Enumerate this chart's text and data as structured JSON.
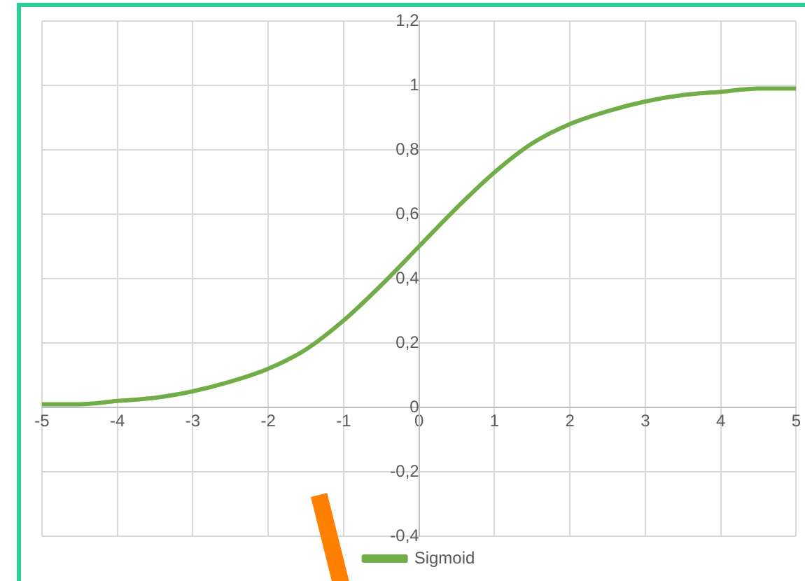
{
  "chart_data": {
    "type": "line",
    "x": [
      -5,
      -4.5,
      -4,
      -3.5,
      -3,
      -2.5,
      -2,
      -1.5,
      -1,
      -0.5,
      0,
      0.5,
      1,
      1.5,
      2,
      2.5,
      3,
      3.5,
      4,
      4.5,
      5
    ],
    "series": [
      {
        "name": "Sigmoid",
        "color": "#70ad47",
        "values": [
          0.01,
          0.01,
          0.02,
          0.03,
          0.05,
          0.08,
          0.12,
          0.18,
          0.27,
          0.38,
          0.5,
          0.62,
          0.73,
          0.82,
          0.88,
          0.92,
          0.95,
          0.97,
          0.98,
          0.99,
          0.99
        ]
      }
    ],
    "xlim": [
      -5,
      5
    ],
    "xticks": [
      -5,
      -4,
      -3,
      -2,
      -1,
      0,
      1,
      2,
      3,
      4,
      5
    ],
    "ylim": [
      -0.4,
      1.2
    ],
    "yticks": [
      {
        "value": -0.4,
        "label": "-0,4"
      },
      {
        "value": -0.2,
        "label": "-0,2"
      },
      0,
      {
        "value": 0.2,
        "label": "0,2"
      },
      {
        "value": 0.4,
        "label": "0,4"
      },
      {
        "value": 0.6,
        "label": "0,6"
      },
      {
        "value": 0.8,
        "label": "0,8"
      },
      1,
      {
        "value": 1.2,
        "label": "1,2"
      }
    ],
    "grid": true,
    "legend": "bottom",
    "marker": "none",
    "line_style": "solid"
  }
}
